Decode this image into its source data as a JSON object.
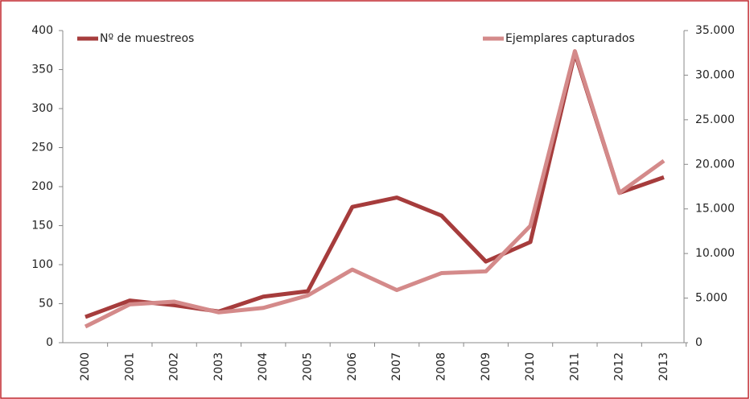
{
  "chart_data": {
    "type": "line",
    "categories": [
      "2000",
      "2001",
      "2002",
      "2003",
      "2004",
      "2005",
      "2006",
      "2007",
      "2008",
      "2009",
      "2010",
      "2011",
      "2012",
      "2013"
    ],
    "series": [
      {
        "name": "Nº de muestreos",
        "color": "#a63c3c",
        "axis": "y",
        "values": [
          33,
          54,
          48,
          40,
          59,
          66,
          174,
          186,
          163,
          104,
          129,
          371,
          192,
          212
        ]
      },
      {
        "name": "Ejemplares capturados",
        "color": "#d48a8a",
        "axis": "y2",
        "values": [
          1800,
          4300,
          4600,
          3400,
          3900,
          5300,
          8200,
          5900,
          7800,
          8000,
          13100,
          32700,
          16800,
          20400
        ]
      }
    ],
    "ylim": [
      0,
      400
    ],
    "yticks": [
      0,
      50,
      100,
      150,
      200,
      250,
      300,
      350,
      400
    ],
    "y2lim": [
      0,
      35000
    ],
    "y2ticks": [
      {
        "value": 0,
        "label": "0"
      },
      {
        "value": 5000,
        "label": "5.000"
      },
      {
        "value": 10000,
        "label": "10.000"
      },
      {
        "value": 15000,
        "label": "15.000"
      },
      {
        "value": 20000,
        "label": "20.000"
      },
      {
        "value": 25000,
        "label": "25.000"
      },
      {
        "value": 30000,
        "label": "30.000"
      },
      {
        "value": 35000,
        "label": "35.000"
      }
    ]
  }
}
